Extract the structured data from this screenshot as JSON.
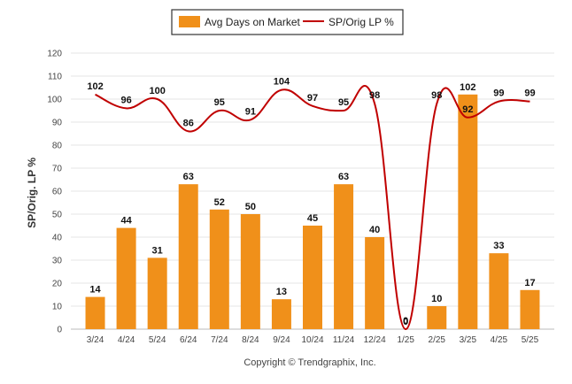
{
  "chart_data": {
    "type": "bar",
    "categories": [
      "3/24",
      "4/24",
      "5/24",
      "6/24",
      "7/24",
      "8/24",
      "9/24",
      "10/24",
      "11/24",
      "12/24",
      "1/25",
      "2/25",
      "3/25",
      "4/25",
      "5/25"
    ],
    "series": [
      {
        "name": "Avg Days on Market",
        "kind": "bar",
        "color": "#F0901A",
        "values": [
          14,
          44,
          31,
          63,
          52,
          50,
          13,
          45,
          63,
          40,
          0,
          10,
          102,
          33,
          17
        ]
      },
      {
        "name": "SP/Orig LP %",
        "kind": "line",
        "color": "#C00000",
        "values": [
          102,
          96,
          100,
          86,
          95,
          91,
          104,
          97,
          95,
          98,
          0,
          98,
          92,
          99,
          99
        ]
      }
    ],
    "ylabel": "SP/Orig. LP %",
    "ylim": [
      0,
      120
    ],
    "yticks": [
      0,
      10,
      20,
      30,
      40,
      50,
      60,
      70,
      80,
      90,
      100,
      110,
      120
    ],
    "grid": true,
    "legend": "top-center"
  },
  "footer": {
    "copyright": "Copyright © Trendgraphix, Inc."
  }
}
